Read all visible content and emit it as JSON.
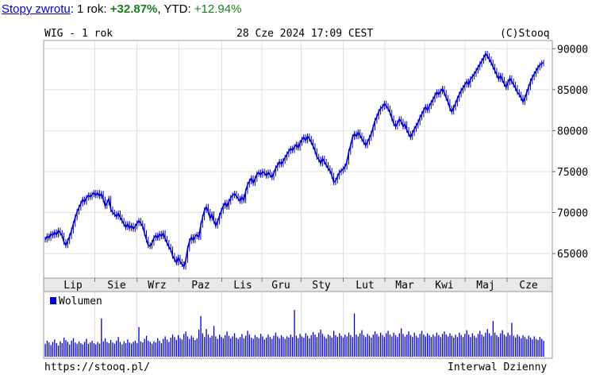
{
  "returns": {
    "link_label": "Stopy zwrotu",
    "period_label": ": 1 rok:",
    "period_value": "+32.87%",
    "ytd_label": ", YTD:",
    "ytd_value": "+12.94%"
  },
  "header": {
    "instrument": "WIG - 1 rok",
    "datetime": "28 Cze 2024 17:09 CEST",
    "copyright": "(C)Stooq"
  },
  "footer": {
    "url": "https://stooq.pl/",
    "interval": "Interwal Dzienny"
  },
  "colors": {
    "series": "#0000cc",
    "panel_bg": "#ffffff",
    "axis_band": "#e8e8e8",
    "grid": "#e0e0e0"
  },
  "chart_data": [
    {
      "type": "line",
      "title": "WIG - 1 rok",
      "ylim": [
        62000,
        91000
      ],
      "yticks": [
        65000,
        70000,
        75000,
        80000,
        85000,
        90000
      ],
      "x_tick_labels": [
        "Lip",
        "Sie",
        "Wrz",
        "Paz",
        "Lis",
        "Gru",
        "Sty",
        "Lut",
        "Mar",
        "Kwi",
        "Maj",
        "Cze"
      ],
      "grid": true,
      "series": [
        {
          "values": [
            66700,
            67100,
            66900,
            67400,
            67200,
            67600,
            67300,
            67800,
            67500,
            67200,
            66400,
            66000,
            66500,
            67100,
            67800,
            68600,
            69400,
            70100,
            70600,
            71100,
            71600,
            71300,
            71800,
            72100,
            71900,
            72200,
            72400,
            72100,
            72400,
            72000,
            72300,
            71600,
            70800,
            71200,
            71700,
            70400,
            70000,
            69800,
            69500,
            69900,
            69400,
            69000,
            68600,
            68200,
            68600,
            68100,
            68400,
            68000,
            68300,
            68700,
            69000,
            68700,
            68300,
            67500,
            66700,
            66000,
            65900,
            66300,
            66900,
            67200,
            66900,
            67400,
            67100,
            67500,
            66800,
            66300,
            65800,
            65500,
            64700,
            64300,
            63900,
            64500,
            64000,
            63700,
            63400,
            64200,
            65600,
            66500,
            67000,
            66600,
            67100,
            67300,
            67000,
            68500,
            69400,
            70300,
            70700,
            70100,
            69300,
            69800,
            69000,
            68400,
            68900,
            69600,
            70200,
            70800,
            71200,
            70700,
            71300,
            71800,
            72100,
            72300,
            72000,
            71700,
            71400,
            71900,
            71500,
            72600,
            73400,
            73800,
            74200,
            73600,
            74100,
            74700,
            74900,
            74600,
            75000,
            74800,
            74500,
            74900,
            74600,
            74300,
            74800,
            75400,
            75800,
            76200,
            75900,
            76300,
            76700,
            77100,
            77500,
            77800,
            77600,
            78000,
            78300,
            77900,
            78500,
            78900,
            79200,
            78800,
            79300,
            79000,
            78600,
            78100,
            77500,
            76800,
            76500,
            76000,
            76600,
            76200,
            75800,
            75400,
            75100,
            74500,
            73700,
            73900,
            74400,
            74900,
            75100,
            75300,
            75600,
            76200,
            77400,
            78200,
            79200,
            79600,
            79300,
            79800,
            79400,
            79000,
            78600,
            78200,
            78600,
            79100,
            79600,
            80400,
            81200,
            81700,
            82300,
            82700,
            82900,
            83300,
            83000,
            82700,
            82200,
            81500,
            80900,
            80500,
            80900,
            81400,
            81100,
            80500,
            80800,
            80100,
            79600,
            79200,
            79700,
            80200,
            80600,
            81000,
            81600,
            82000,
            82500,
            82900,
            82500,
            83000,
            83400,
            83800,
            84300,
            84700,
            84400,
            84800,
            85100,
            84600,
            84000,
            83500,
            82700,
            82300,
            82800,
            83300,
            83900,
            84400,
            84900,
            85200,
            85600,
            86000,
            85600,
            86300,
            86600,
            86900,
            87300,
            87700,
            88100,
            88500,
            88900,
            89400,
            89100,
            88700,
            88300,
            87800,
            87300,
            86800,
            86300,
            86700,
            86200,
            85700,
            85300,
            85900,
            86400,
            86000,
            85600,
            85200,
            84700,
            84400,
            84000,
            83500,
            84000,
            84700,
            85300,
            86000,
            86500,
            86900,
            87300,
            87700,
            88000,
            88200,
            88300
          ]
        }
      ]
    },
    {
      "type": "bar",
      "title": "Wolumen",
      "series": [
        {
          "name": "Wolumen",
          "values": [
            2.1,
            2.6,
            2.3,
            1.9,
            2.4,
            2.8,
            2.2,
            1.8,
            2.5,
            2.2,
            3.1,
            2.7,
            2.4,
            2.0,
            2.6,
            3.0,
            2.3,
            2.1,
            2.5,
            2.2,
            2.0,
            2.4,
            2.9,
            2.1,
            2.3,
            2.6,
            2.2,
            2.0,
            2.4,
            2.1,
            6.2,
            2.5,
            3.0,
            2.4,
            2.2,
            2.7,
            2.3,
            2.1,
            2.6,
            3.2,
            2.4,
            2.0,
            2.5,
            2.2,
            2.8,
            2.3,
            2.1,
            2.4,
            2.6,
            2.2,
            4.8,
            2.5,
            2.3,
            2.9,
            3.4,
            2.6,
            2.4,
            2.1,
            2.5,
            2.3,
            3.0,
            2.6,
            2.2,
            2.9,
            3.3,
            2.8,
            2.4,
            3.1,
            3.6,
            3.2,
            2.7,
            3.5,
            3.0,
            2.8,
            3.7,
            4.1,
            3.3,
            2.9,
            3.4,
            3.1,
            2.7,
            3.0,
            4.4,
            6.6,
            3.8,
            3.2,
            4.5,
            3.6,
            3.1,
            3.4,
            5.0,
            3.3,
            2.9,
            3.6,
            3.2,
            3.0,
            3.5,
            4.1,
            3.4,
            3.0,
            3.3,
            3.8,
            3.1,
            2.9,
            3.2,
            3.7,
            3.0,
            3.4,
            4.2,
            3.6,
            3.1,
            2.9,
            3.5,
            3.2,
            3.0,
            3.7,
            3.3,
            2.8,
            3.1,
            3.6,
            3.2,
            2.9,
            3.4,
            3.9,
            3.3,
            3.0,
            3.5,
            3.2,
            2.9,
            3.3,
            3.1,
            3.6,
            3.2,
            7.6,
            3.4,
            3.0,
            3.7,
            3.3,
            3.1,
            3.8,
            3.4,
            3.0,
            3.5,
            4.0,
            3.6,
            3.2,
            3.9,
            4.4,
            3.7,
            3.3,
            3.0,
            3.6,
            3.4,
            3.1,
            4.2,
            3.5,
            3.2,
            3.8,
            3.4,
            3.1,
            3.6,
            3.3,
            3.9,
            3.5,
            3.2,
            7.0,
            3.6,
            3.3,
            3.8,
            4.3,
            3.5,
            3.2,
            3.7,
            3.4,
            3.1,
            3.6,
            4.1,
            3.7,
            3.3,
            3.9,
            3.5,
            3.2,
            3.8,
            4.2,
            3.6,
            3.3,
            3.9,
            3.5,
            3.2,
            3.8,
            4.6,
            3.7,
            3.3,
            3.6,
            4.1,
            3.5,
            3.2,
            3.9,
            3.4,
            3.1,
            3.7,
            4.2,
            3.6,
            3.3,
            3.8,
            3.5,
            3.2,
            3.6,
            3.3,
            3.9,
            3.5,
            3.2,
            3.7,
            4.1,
            3.6,
            3.3,
            3.8,
            3.4,
            3.1,
            3.6,
            3.2,
            3.9,
            3.5,
            3.2,
            3.7,
            4.3,
            3.6,
            3.2,
            3.8,
            3.4,
            3.1,
            3.7,
            4.2,
            3.6,
            3.3,
            3.9,
            4.5,
            3.8,
            3.4,
            5.8,
            3.9,
            3.5,
            3.2,
            3.8,
            4.3,
            3.6,
            3.3,
            3.9,
            3.5,
            5.5,
            3.4,
            3.1,
            3.6,
            3.3,
            3.0,
            3.5,
            3.2,
            2.9,
            3.4,
            3.1,
            2.8,
            3.3,
            2.9,
            2.7,
            3.2,
            2.9,
            2.6
          ]
        }
      ]
    }
  ]
}
